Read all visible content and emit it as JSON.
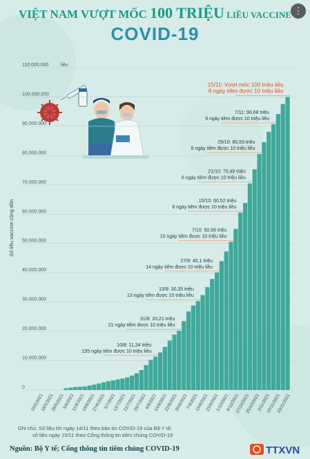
{
  "header": {
    "title_part1": "VIỆT NAM VƯỢT MỐC ",
    "title_part2": "100 TRIỆU",
    "title_part3": " LIỀU VACCINE",
    "title_line2": "COVID-19",
    "share_icon": "ellipsis-icon"
  },
  "chart_data": {
    "type": "bar",
    "ylabel": "Số liều vaccine cộng dồn",
    "yunit_label": "liều",
    "ylim": [
      0,
      110000000
    ],
    "yticks": [
      0,
      10000000,
      20000000,
      30000000,
      40000000,
      50000000,
      60000000,
      70000000,
      80000000,
      90000000,
      100000000,
      110000000
    ],
    "ytick_labels": [
      "0",
      "10.000.000",
      "20.000.000",
      "30.000.000",
      "40.000.000",
      "50.000.000",
      "60.000.000",
      "70.000.000",
      "80.000.000",
      "90.000.000",
      "100.000.000",
      "110.000.000"
    ],
    "grid": true,
    "bar_color": "#3fa99b",
    "xtick_labels": [
      "10/5/2021",
      "18/5/2021",
      "26/5/2021",
      "3/6/2021",
      "11/6/2021",
      "19/6/2021",
      "27/6/2021",
      "5/7/2021",
      "13/7/2021",
      "21/7/2021",
      "29/7/2021",
      "6/8/2021",
      "14/8/2021",
      "22/8/2021",
      "30/8/2021",
      "7/9/2021",
      "15/9/2021",
      "23/9/2021",
      "1/10/2021",
      "9/10/2021",
      "17/10/2021",
      "25/10/2021",
      "2/11/2021",
      "10/11/2021",
      "15/11/2021"
    ],
    "milestones": [
      {
        "date": "10/8",
        "value": 11340000,
        "line1": "10/8: 11,34 triệu",
        "line2": "155 ngày tiêm được 10 triệu liều",
        "highlight": false
      },
      {
        "date": "31/8",
        "value": 20210000,
        "line1": "31/8: 20,21 triệu",
        "line2": "21 ngày tiêm được 10 triệu liều",
        "highlight": false
      },
      {
        "date": "13/9",
        "value": 30350000,
        "line1": "13/9: 30,35 triệu",
        "line2": "13 ngày tiêm được 10 triệu liều",
        "highlight": false
      },
      {
        "date": "27/9",
        "value": 40100000,
        "line1": "27/9: 40,1 triệu",
        "line2": "14 ngày tiêm được 10 triệu liều",
        "highlight": false
      },
      {
        "date": "7/10",
        "value": 50560000,
        "line1": "7/10: 50,56 triệu",
        "line2": "10 ngày tiêm được 10 triệu liều",
        "highlight": false
      },
      {
        "date": "15/10",
        "value": 60520000,
        "line1": "15/10: 60,52 triệu",
        "line2": "8 ngày tiêm được 10 triệu liều",
        "highlight": false
      },
      {
        "date": "21/10",
        "value": 70490000,
        "line1": "21/10: 70,49 triệu",
        "line2": "6 ngày tiêm được 10 triệu liều",
        "highlight": false
      },
      {
        "date": "29/10",
        "value": 80530000,
        "line1": "29/10: 80,53 triệu",
        "line2": "8 ngày tiêm được 10 triệu liều",
        "highlight": false
      },
      {
        "date": "7/11",
        "value": 90680000,
        "line1": "7/11: 90,68 triệu",
        "line2": "9 ngày tiêm được 10 triệu liều",
        "highlight": false
      },
      {
        "date": "15/11",
        "value": 100000000,
        "line1": "15/11: Vượt mốc 100 triệu liều",
        "line2": "8 ngày tiêm được 10 triệu liều",
        "highlight": true
      }
    ],
    "x": [
      "10/5",
      "15/5",
      "20/5",
      "25/5",
      "30/5",
      "4/6",
      "9/6",
      "14/6",
      "19/6",
      "24/6",
      "29/6",
      "4/7",
      "9/7",
      "14/7",
      "19/7",
      "24/7",
      "29/7",
      "3/8",
      "8/8",
      "10/8",
      "13/8",
      "18/8",
      "23/8",
      "28/8",
      "31/8",
      "3/9",
      "6/9",
      "9/9",
      "13/9",
      "16/9",
      "20/9",
      "24/9",
      "27/9",
      "1/10",
      "4/10",
      "7/10",
      "11/10",
      "15/10",
      "18/10",
      "21/10",
      "25/10",
      "29/10",
      "2/11",
      "5/11",
      "7/11",
      "10/11",
      "13/11",
      "15/11"
    ],
    "values": [
      600000,
      800000,
      1000000,
      1100000,
      1200000,
      1500000,
      1800000,
      2200000,
      2600000,
      3000000,
      3300000,
      3600000,
      3900000,
      4300000,
      4900000,
      5700000,
      6800000,
      8500000,
      10300000,
      11340000,
      12800000,
      14700000,
      16900000,
      18900000,
      20210000,
      23500000,
      26800000,
      28800000,
      30350000,
      32400000,
      35100000,
      37900000,
      40100000,
      44000000,
      47300000,
      50560000,
      55000000,
      60520000,
      63800000,
      70490000,
      75300000,
      80530000,
      84600000,
      88100000,
      90680000,
      94200000,
      97600000,
      100000000
    ]
  },
  "notes": {
    "line1": "Ghi chú:  Số liệu tới ngày 14/11 theo bản tin COVID-19 của Bộ Y tế;",
    "line2": "số liệu ngày 15/11 theo Cổng thông tin tiêm chủng COVID-19"
  },
  "source": "Nguồn: Bộ Y tế; Cổng thông tin tiêm chủng COVID-19",
  "logo_text": "TTXVN",
  "colors": {
    "background": "#d7ece9",
    "title_teal": "#1a9a86",
    "title_blue": "#2a8fa8",
    "highlight": "#e0501e",
    "leader_line": "#e8a27a"
  }
}
